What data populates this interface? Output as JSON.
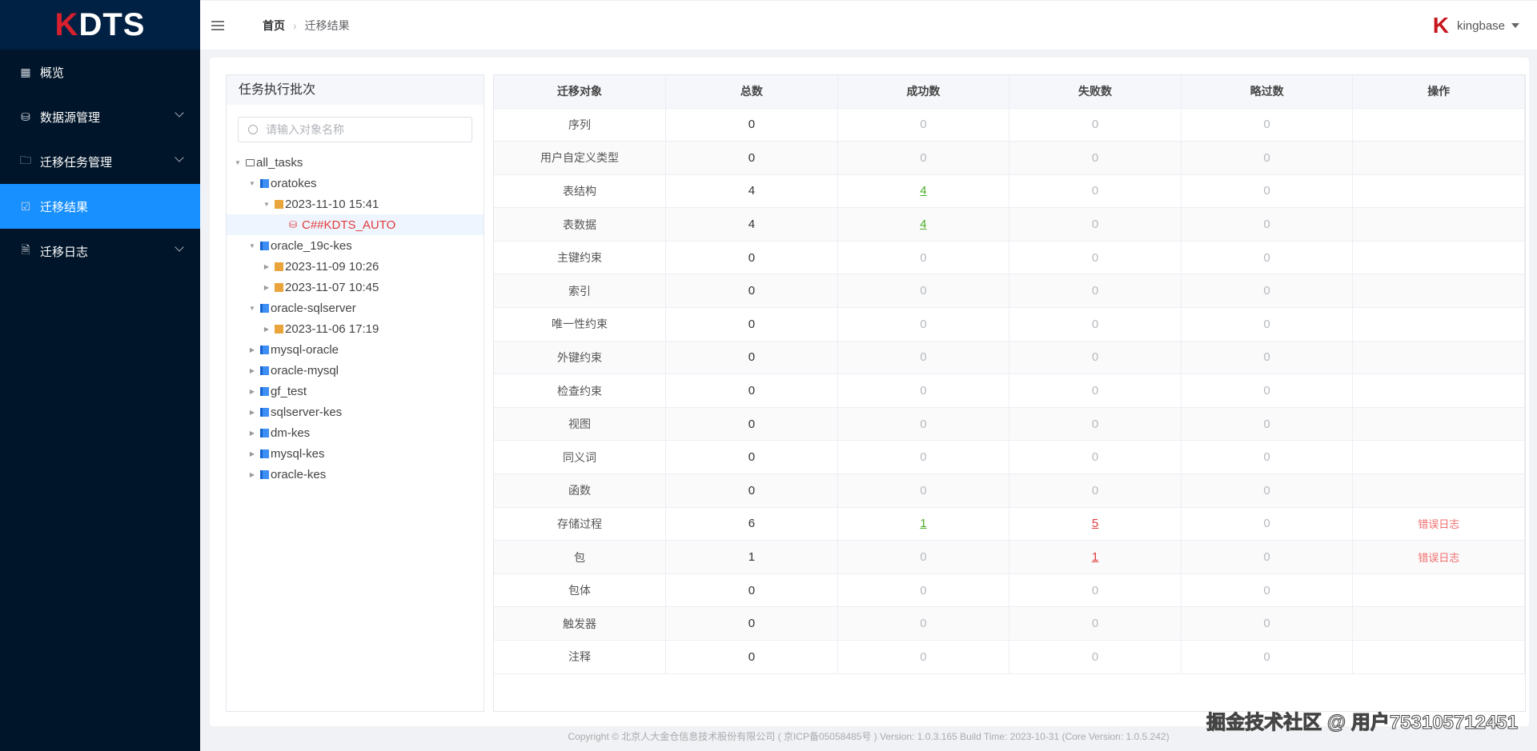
{
  "app": {
    "logo_k": "K",
    "logo_rest": "DTS"
  },
  "sidebar": {
    "items": [
      {
        "label": "概览",
        "icon": "grid-icon",
        "expandable": false,
        "active": false
      },
      {
        "label": "数据源管理",
        "icon": "database-icon",
        "expandable": true,
        "active": false
      },
      {
        "label": "迁移任务管理",
        "icon": "folder-icon",
        "expandable": true,
        "active": false
      },
      {
        "label": "迁移结果",
        "icon": "checked-folder-icon",
        "expandable": false,
        "active": true
      },
      {
        "label": "迁移日志",
        "icon": "document-icon",
        "expandable": true,
        "active": false
      }
    ]
  },
  "header": {
    "breadcrumb": [
      "首页",
      "迁移结果"
    ],
    "user": "kingbase"
  },
  "tree": {
    "title": "任务执行批次",
    "search_placeholder": "请输入对象名称",
    "search_value": "",
    "nodes": [
      {
        "label": "all_tasks",
        "level": 0,
        "type": "folder",
        "state": "open"
      },
      {
        "label": "oratokes",
        "level": 1,
        "type": "book",
        "state": "open"
      },
      {
        "label": "2023-11-10 15:41",
        "level": 2,
        "type": "clip",
        "state": "open"
      },
      {
        "label": "C##KDTS_AUTO",
        "level": 3,
        "type": "db",
        "state": "leaf",
        "selected": true
      },
      {
        "label": "oracle_19c-kes",
        "level": 1,
        "type": "book",
        "state": "open"
      },
      {
        "label": "2023-11-09 10:26",
        "level": 2,
        "type": "clip",
        "state": "closed"
      },
      {
        "label": "2023-11-07 10:45",
        "level": 2,
        "type": "clip",
        "state": "closed"
      },
      {
        "label": "oracle-sqlserver",
        "level": 1,
        "type": "book",
        "state": "open"
      },
      {
        "label": "2023-11-06 17:19",
        "level": 2,
        "type": "clip",
        "state": "closed"
      },
      {
        "label": "mysql-oracle",
        "level": 1,
        "type": "book",
        "state": "closed"
      },
      {
        "label": "oracle-mysql",
        "level": 1,
        "type": "book",
        "state": "closed"
      },
      {
        "label": "gf_test",
        "level": 1,
        "type": "book",
        "state": "closed"
      },
      {
        "label": "sqlserver-kes",
        "level": 1,
        "type": "book",
        "state": "closed"
      },
      {
        "label": "dm-kes",
        "level": 1,
        "type": "book",
        "state": "closed"
      },
      {
        "label": "mysql-kes",
        "level": 1,
        "type": "book",
        "state": "closed"
      },
      {
        "label": "oracle-kes",
        "level": 1,
        "type": "book",
        "state": "closed"
      }
    ]
  },
  "table": {
    "columns": [
      "迁移对象",
      "总数",
      "成功数",
      "失败数",
      "略过数",
      "操作"
    ],
    "action_label": "错误日志",
    "rows": [
      {
        "object": "序列",
        "total": 0,
        "success": 0,
        "fail": 0,
        "skip": 0
      },
      {
        "object": "用户自定义类型",
        "total": 0,
        "success": 0,
        "fail": 0,
        "skip": 0
      },
      {
        "object": "表结构",
        "total": 4,
        "success": 4,
        "fail": 0,
        "skip": 0
      },
      {
        "object": "表数据",
        "total": 4,
        "success": 4,
        "fail": 0,
        "skip": 0
      },
      {
        "object": "主键约束",
        "total": 0,
        "success": 0,
        "fail": 0,
        "skip": 0
      },
      {
        "object": "索引",
        "total": 0,
        "success": 0,
        "fail": 0,
        "skip": 0
      },
      {
        "object": "唯一性约束",
        "total": 0,
        "success": 0,
        "fail": 0,
        "skip": 0
      },
      {
        "object": "外键约束",
        "total": 0,
        "success": 0,
        "fail": 0,
        "skip": 0
      },
      {
        "object": "检查约束",
        "total": 0,
        "success": 0,
        "fail": 0,
        "skip": 0
      },
      {
        "object": "视图",
        "total": 0,
        "success": 0,
        "fail": 0,
        "skip": 0
      },
      {
        "object": "同义词",
        "total": 0,
        "success": 0,
        "fail": 0,
        "skip": 0
      },
      {
        "object": "函数",
        "total": 0,
        "success": 0,
        "fail": 0,
        "skip": 0
      },
      {
        "object": "存储过程",
        "total": 6,
        "success": 1,
        "fail": 5,
        "skip": 0
      },
      {
        "object": "包",
        "total": 1,
        "success": 0,
        "fail": 1,
        "skip": 0
      },
      {
        "object": "包体",
        "total": 0,
        "success": 0,
        "fail": 0,
        "skip": 0
      },
      {
        "object": "触发器",
        "total": 0,
        "success": 0,
        "fail": 0,
        "skip": 0
      },
      {
        "object": "注释",
        "total": 0,
        "success": 0,
        "fail": 0,
        "skip": 0
      }
    ]
  },
  "footer": "Copyright © 北京人大金仓信息技术股份有限公司 ( 京ICP备05058485号 ) Version: 1.0.3.165 Build Time: 2023-10-31 (Core Version: 1.0.5.242)",
  "watermark": "掘金技术社区 @ 用户753105712451",
  "colors": {
    "sidebar": "#001529",
    "active": "#1890ff",
    "success": "#4cae27",
    "fail": "#e03b3b"
  }
}
